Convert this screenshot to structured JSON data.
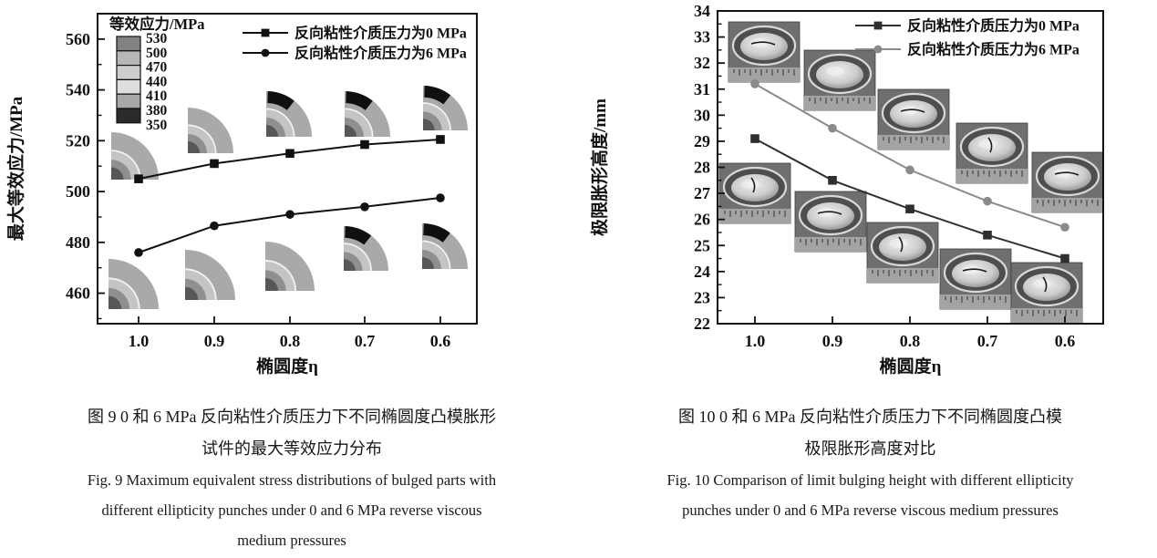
{
  "figure9": {
    "caption_cn": [
      "图 9  0 和 6 MPa 反向粘性介质压力下不同椭圆度凸模胀形",
      "试件的最大等效应力分布"
    ],
    "caption_en": [
      "Fig. 9  Maximum equivalent stress distributions of bulged parts with",
      "different ellipticity punches under 0 and 6 MPa reverse viscous",
      "medium pressures"
    ]
  },
  "figure10": {
    "caption_cn": [
      "图 10  0 和 6 MPa 反向粘性介质压力下不同椭圆度凸模",
      "极限胀形高度对比"
    ],
    "caption_en": [
      "Fig. 10  Comparison of limit bulging height with different ellipticity",
      "punches under 0 and 6 MPa reverse viscous medium pressures"
    ]
  },
  "chart_data": [
    {
      "id": "fig9",
      "type": "line",
      "title": "",
      "xlabel": "椭圆度η",
      "ylabel": "最大等效应力/MPa",
      "x_categories": [
        "1.0",
        "0.9",
        "0.8",
        "0.7",
        "0.6"
      ],
      "x_axis_reversed": true,
      "ylim": [
        448,
        570
      ],
      "yticks": [
        460,
        480,
        500,
        520,
        540,
        560
      ],
      "y_minor_step": 10,
      "grid": false,
      "legend_position": "top-right-inside",
      "series": [
        {
          "name": "反向粘性介质压力为0 MPa",
          "marker": "square",
          "color": "#111111",
          "values": [
            505,
            511,
            515,
            518.5,
            520.5
          ]
        },
        {
          "name": "反向粘性介质压力为6 MPa",
          "marker": "circle",
          "color": "#111111",
          "values": [
            476,
            486.5,
            491,
            494,
            497.5
          ]
        }
      ],
      "colorbar": {
        "title": "等效应力/MPa",
        "tick_labels": [
          "530",
          "500",
          "470",
          "440",
          "410",
          "380",
          "350"
        ],
        "cell_colors": [
          "#828282",
          "#b7b7b7",
          "#cdcdcd",
          "#dedede",
          "#a8a8a8",
          "#2a2a2a"
        ]
      },
      "insets": {
        "description": "quarter contour plots of equivalent stress for each ellipticity",
        "top_row_black_patch": [
          false,
          false,
          true,
          true,
          true
        ],
        "bottom_row_black_patch": [
          false,
          false,
          false,
          true,
          true
        ]
      }
    },
    {
      "id": "fig10",
      "type": "line",
      "title": "",
      "xlabel": "椭圆度η",
      "ylabel": "极限胀形高度/mm",
      "x_categories": [
        "1.0",
        "0.9",
        "0.8",
        "0.7",
        "0.6"
      ],
      "x_axis_reversed": true,
      "ylim": [
        22,
        34
      ],
      "yticks": [
        22,
        23,
        24,
        25,
        26,
        27,
        28,
        29,
        30,
        31,
        32,
        33,
        34
      ],
      "y_minor_step": 0.5,
      "grid": false,
      "legend_position": "top-right-inside",
      "series": [
        {
          "name": "反向粘性介质压力为0 MPa",
          "marker": "square",
          "color": "#2f2f2f",
          "values": [
            29.1,
            27.5,
            26.4,
            25.4,
            24.5
          ]
        },
        {
          "name": "反向粘性介质压力为6 MPa",
          "marker": "circle",
          "color": "#8a8a8a",
          "values": [
            31.2,
            29.5,
            27.9,
            26.7,
            25.7
          ]
        }
      ],
      "photos": {
        "description": "bulged specimen photographs with ruler below each dome",
        "rows": [
          {
            "series": "6 MPa",
            "cracks": [
              true,
              false,
              true,
              true,
              true
            ]
          },
          {
            "series": "0 MPa",
            "cracks": [
              true,
              true,
              true,
              true,
              true
            ]
          }
        ]
      }
    }
  ]
}
